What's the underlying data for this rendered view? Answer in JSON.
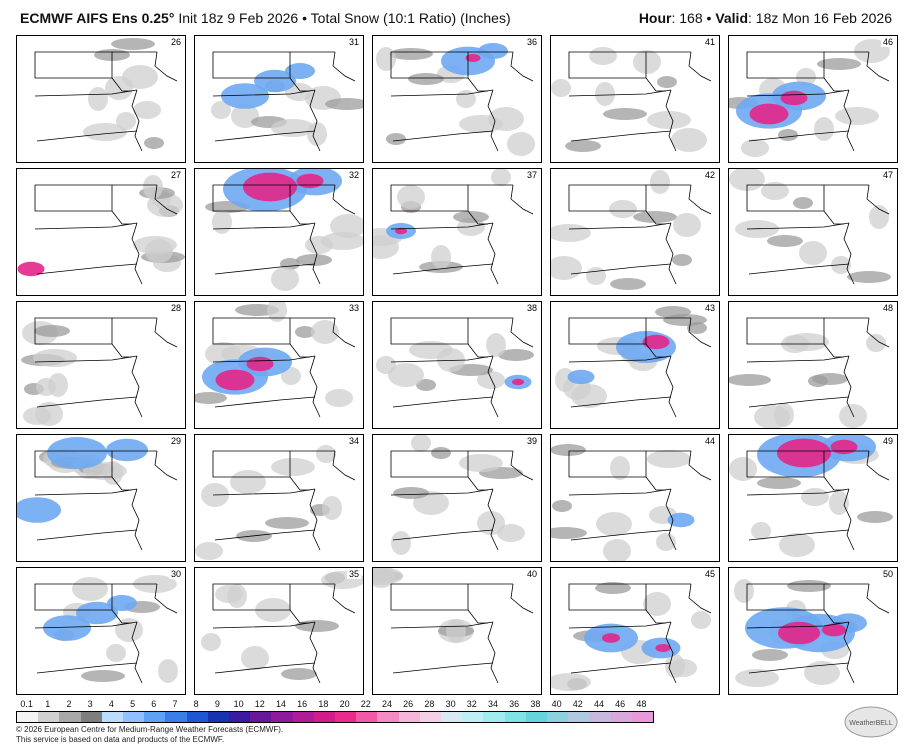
{
  "header": {
    "model": "ECMWF AIFS Ens 0.25",
    "degree": "°",
    "init": "Init 18z 9 Feb 2026",
    "separator": "•",
    "field": "Total Snow (10:1 Ratio) (Inches)",
    "hour_label": "Hour",
    "hour_value": "168",
    "valid_label": "Valid",
    "valid_value": "18z Mon 16 Feb 2026"
  },
  "members": [
    {
      "id": "26",
      "snow": "light"
    },
    {
      "id": "31",
      "snow": "band-north"
    },
    {
      "id": "36",
      "snow": "northeast"
    },
    {
      "id": "41",
      "snow": "light"
    },
    {
      "id": "46",
      "snow": "heavy-west"
    },
    {
      "id": "27",
      "snow": "light-west"
    },
    {
      "id": "32",
      "snow": "heavy-north"
    },
    {
      "id": "37",
      "snow": "spot-west"
    },
    {
      "id": "42",
      "snow": "light"
    },
    {
      "id": "47",
      "snow": "light"
    },
    {
      "id": "28",
      "snow": "light"
    },
    {
      "id": "33",
      "snow": "heavy-west"
    },
    {
      "id": "38",
      "snow": "spot-east"
    },
    {
      "id": "43",
      "snow": "moderate-central"
    },
    {
      "id": "48",
      "snow": "light"
    },
    {
      "id": "29",
      "snow": "moderate-west"
    },
    {
      "id": "34",
      "snow": "light"
    },
    {
      "id": "39",
      "snow": "light"
    },
    {
      "id": "44",
      "snow": "spot-central"
    },
    {
      "id": "49",
      "snow": "heavy-north"
    },
    {
      "id": "30",
      "snow": "band-north"
    },
    {
      "id": "35",
      "snow": "light"
    },
    {
      "id": "40",
      "snow": "light"
    },
    {
      "id": "45",
      "snow": "moderate-south"
    },
    {
      "id": "50",
      "snow": "heavy-central"
    }
  ],
  "legend": {
    "ticks": [
      "0.1",
      "1",
      "2",
      "3",
      "4",
      "5",
      "6",
      "7",
      "8",
      "9",
      "10",
      "12",
      "14",
      "16",
      "18",
      "20",
      "22",
      "24",
      "26",
      "28",
      "30",
      "32",
      "34",
      "36",
      "38",
      "40",
      "42",
      "44",
      "46",
      "48"
    ],
    "colors": [
      "#f4f4f4",
      "#d0d0d0",
      "#a8a8a8",
      "#7e7e7e",
      "#bcdcff",
      "#8ec1ff",
      "#5fa2f5",
      "#3c7ee8",
      "#1f56d6",
      "#1634b0",
      "#3a1aa0",
      "#6a1899",
      "#8e1b9e",
      "#b01c97",
      "#d21b8c",
      "#ea2b8b",
      "#f25aa8",
      "#f48cc3",
      "#f7b5d9",
      "#f3d0e6",
      "#d8e8f5",
      "#c0eef5",
      "#a0ecef",
      "#80e3e6",
      "#66d4dc",
      "#8fd0e0",
      "#b0c8e0",
      "#c8b8de",
      "#d8a8dc",
      "#e89ad8"
    ]
  },
  "footer": {
    "line1": "© 2026 European Centre for Medium-Range Weather Forecasts (ECMWF).",
    "line2": "This service is based on data and products of the ECMWF."
  },
  "logo": {
    "text": "WeatherBELL"
  }
}
